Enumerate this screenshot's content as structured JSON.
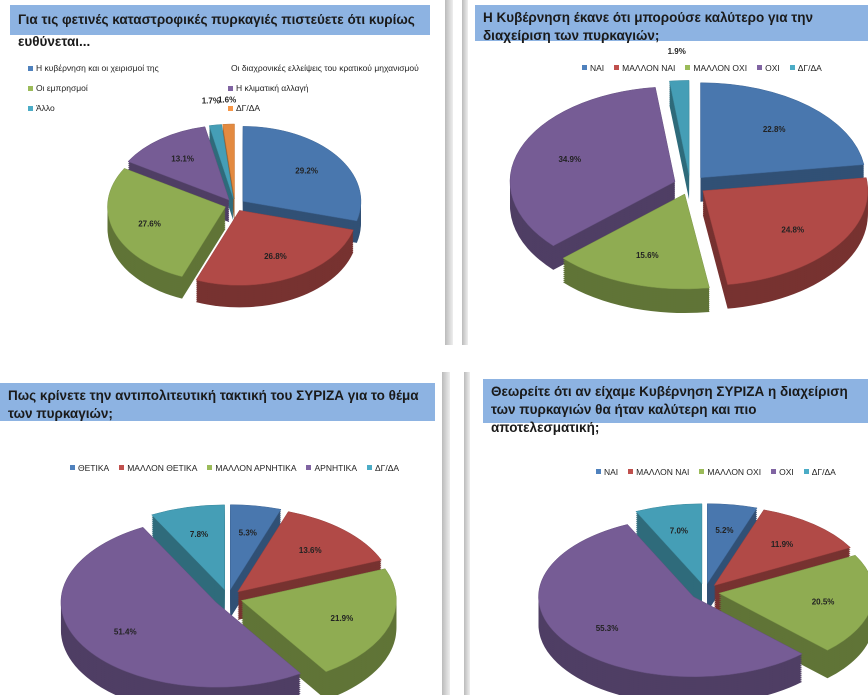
{
  "colors": {
    "blue": "#4f81bd",
    "red": "#c0504d",
    "green": "#9bbb59",
    "purple": "#8064a2",
    "cyan": "#4bacc6",
    "orange": "#f79646",
    "title_bg": "#8db3e2"
  },
  "chart_data": [
    {
      "type": "pie",
      "title": "Για τις φετινές καταστροφικές πυρκαγιές πιστεύετε ότι κυρίως ευθύνεται...",
      "categories": [
        "Η κυβέρνηση και οι χειρισμοί της",
        "Οι διαχρονικές ελλείψεις του κρατικού μηχανισμού",
        "Οι εμπρησμοί",
        "Η κλιματική αλλαγή",
        "Άλλο",
        "ΔΓ/ΔΑ"
      ],
      "values": [
        29.2,
        26.8,
        27.6,
        13.1,
        1.7,
        1.6
      ],
      "labels": [
        "29.2%",
        "26.8%",
        "27.6%",
        "13.1%",
        "1.7%",
        "1.6%"
      ],
      "series_colors": [
        "#4f81bd",
        "#c0504d",
        "#9bbb59",
        "#8064a2",
        "#4bacc6",
        "#f79646"
      ],
      "legend": "top"
    },
    {
      "type": "pie",
      "title": "Η Κυβέρνηση έκανε ότι μπορούσε καλύτερο για την διαχείριση των πυρκαγιών;",
      "categories": [
        "ΝΑΙ",
        "ΜΑΛΛΟΝ ΝΑΙ",
        "ΜΑΛΛΟΝ ΟΧΙ",
        "ΟΧΙ",
        "ΔΓ/ΔΑ"
      ],
      "values": [
        22.8,
        24.8,
        15.6,
        34.9,
        1.9
      ],
      "labels": [
        "22.8%",
        "24.8%",
        "15.6%",
        "34.9%",
        "1.9%"
      ],
      "series_colors": [
        "#4f81bd",
        "#c0504d",
        "#9bbb59",
        "#8064a2",
        "#4bacc6"
      ],
      "legend": "top"
    },
    {
      "type": "pie",
      "title": "Πως κρίνετε την αντιπολιτευτική τακτική του ΣΥΡΙΖΑ για το θέμα των πυρκαγιών;",
      "categories": [
        "ΘΕΤΙΚΑ",
        "ΜΑΛΛΟΝ ΘΕΤΙΚΑ",
        "ΜΑΛΛΟΝ ΑΡΝΗΤΙΚΑ",
        "ΑΡΝΗΤΙΚΑ",
        "ΔΓ/ΔΑ"
      ],
      "values": [
        5.3,
        13.6,
        21.9,
        51.4,
        7.8
      ],
      "labels": [
        "5.3%",
        "13.6%",
        "21.9%",
        "51.4%",
        "7.8%"
      ],
      "series_colors": [
        "#4f81bd",
        "#c0504d",
        "#9bbb59",
        "#8064a2",
        "#4bacc6"
      ],
      "legend": "top"
    },
    {
      "type": "pie",
      "title": "Θεωρείτε ότι αν είχαμε Κυβέρνηση ΣΥΡΙΖΑ η διαχείριση των πυρκαγιών θα ήταν καλύτερη και πιο αποτελεσματική;",
      "categories": [
        "ΝΑΙ",
        "ΜΑΛΛΟΝ ΝΑΙ",
        "ΜΑΛΛΟΝ ΟΧΙ",
        "ΟΧΙ",
        "ΔΓ/ΔΑ"
      ],
      "values": [
        5.2,
        11.9,
        20.5,
        55.3,
        7.0
      ],
      "labels": [
        "5.2%",
        "11.9%",
        "20.5%",
        "55.3%",
        "7.0%"
      ],
      "series_colors": [
        "#4f81bd",
        "#c0504d",
        "#9bbb59",
        "#8064a2",
        "#4bacc6"
      ],
      "legend": "top"
    }
  ]
}
